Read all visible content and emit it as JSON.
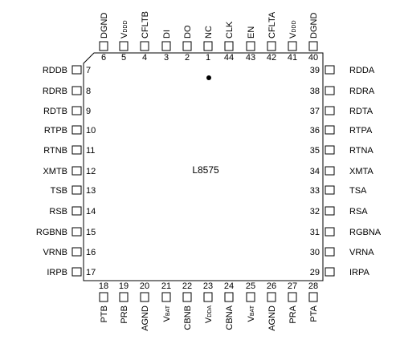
{
  "part_label": "L8575",
  "pins_top": [
    {
      "num": "6",
      "name": "DGND"
    },
    {
      "num": "5",
      "name": "V",
      "sub": "DDD"
    },
    {
      "num": "4",
      "name": "CFLTB"
    },
    {
      "num": "3",
      "name": "DI"
    },
    {
      "num": "2",
      "name": "DO"
    },
    {
      "num": "1",
      "name": "NC"
    },
    {
      "num": "44",
      "name": "CLK"
    },
    {
      "num": "43",
      "name": "EN"
    },
    {
      "num": "42",
      "name": "CFLTA"
    },
    {
      "num": "41",
      "name": "V",
      "sub": "DDD"
    },
    {
      "num": "40",
      "name": "DGND"
    }
  ],
  "pins_left": [
    {
      "num": "7",
      "name": "RDDB"
    },
    {
      "num": "8",
      "name": "RDRB"
    },
    {
      "num": "9",
      "name": "RDTB"
    },
    {
      "num": "10",
      "name": "RTPB"
    },
    {
      "num": "11",
      "name": "RTNB"
    },
    {
      "num": "12",
      "name": "XMTB"
    },
    {
      "num": "13",
      "name": "TSB"
    },
    {
      "num": "14",
      "name": "RSB"
    },
    {
      "num": "15",
      "name": "RGBNB"
    },
    {
      "num": "16",
      "name": "VRNB"
    },
    {
      "num": "17",
      "name": "IRPB"
    }
  ],
  "pins_right": [
    {
      "num": "39",
      "name": "RDDA"
    },
    {
      "num": "38",
      "name": "RDRA"
    },
    {
      "num": "37",
      "name": "RDTA"
    },
    {
      "num": "36",
      "name": "RTPA"
    },
    {
      "num": "35",
      "name": "RTNA"
    },
    {
      "num": "34",
      "name": "XMTA"
    },
    {
      "num": "33",
      "name": "TSA"
    },
    {
      "num": "32",
      "name": "RSA"
    },
    {
      "num": "31",
      "name": "RGBNA"
    },
    {
      "num": "30",
      "name": "VRNA"
    },
    {
      "num": "29",
      "name": "IRPA"
    }
  ],
  "pins_bottom": [
    {
      "num": "18",
      "name": "PTB"
    },
    {
      "num": "19",
      "name": "PRB"
    },
    {
      "num": "20",
      "name": "AGND"
    },
    {
      "num": "21",
      "name": "V",
      "sub": "BAT"
    },
    {
      "num": "22",
      "name": "CBNB"
    },
    {
      "num": "23",
      "name": "V",
      "sub": "DDA"
    },
    {
      "num": "24",
      "name": "CBNA"
    },
    {
      "num": "25",
      "name": "V",
      "sub": "BAT"
    },
    {
      "num": "26",
      "name": "AGND"
    },
    {
      "num": "27",
      "name": "PRA"
    },
    {
      "num": "28",
      "name": "PTA"
    }
  ]
}
